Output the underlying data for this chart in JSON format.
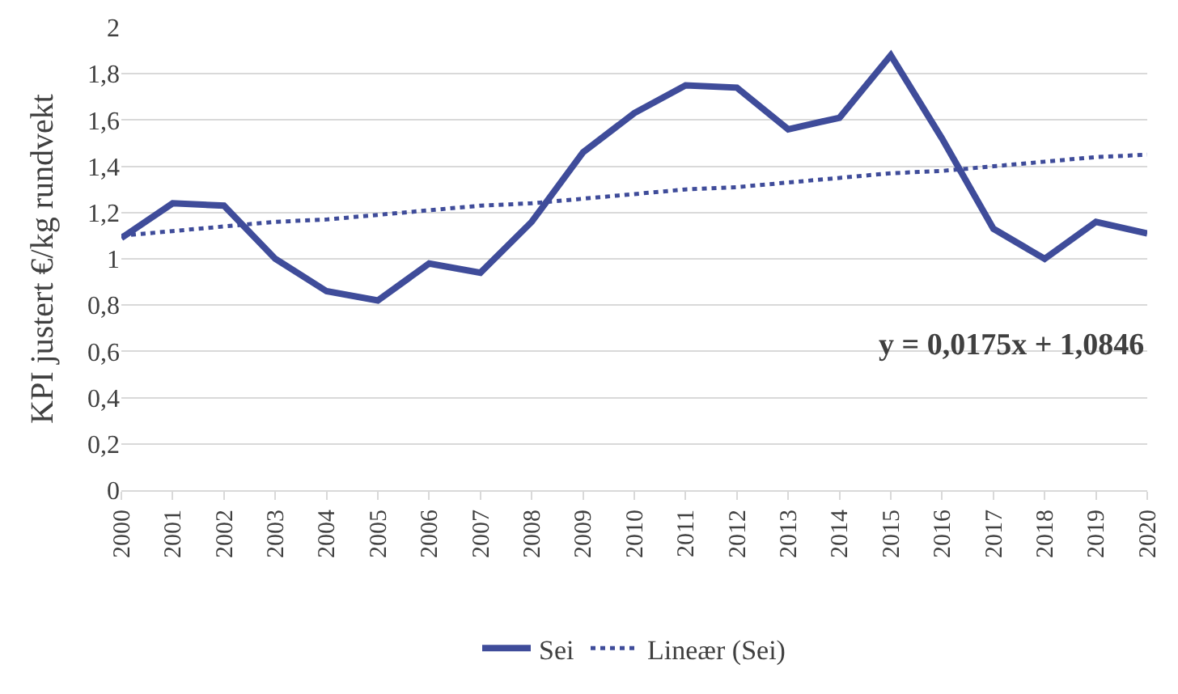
{
  "chart_data": {
    "type": "line",
    "ylabel": "KPI justert €/kg rundvekt",
    "categories": [
      "2000",
      "2001",
      "2002",
      "2003",
      "2004",
      "2005",
      "2006",
      "2007",
      "2008",
      "2009",
      "2010",
      "2011",
      "2012",
      "2013",
      "2014",
      "2015",
      "2016",
      "2017",
      "2018",
      "2019",
      "2020"
    ],
    "series": [
      {
        "name": "Sei",
        "color": "#3f4c9a",
        "values": [
          1.09,
          1.24,
          1.23,
          1.0,
          0.86,
          0.82,
          0.98,
          0.94,
          1.16,
          1.46,
          1.63,
          1.75,
          1.74,
          1.56,
          1.61,
          1.88,
          1.52,
          1.13,
          1.0,
          1.16,
          1.11
        ],
        "line_style": "solid"
      },
      {
        "name": "Lineær (Sei)",
        "color": "#3f4c9a",
        "type": "line",
        "values": [
          1.1,
          1.12,
          1.14,
          1.16,
          1.17,
          1.19,
          1.21,
          1.23,
          1.24,
          1.26,
          1.28,
          1.3,
          1.31,
          1.33,
          1.35,
          1.37,
          1.38,
          1.4,
          1.42,
          1.44,
          1.45
        ],
        "line_style": "dotted"
      }
    ],
    "ylim": [
      0,
      2
    ],
    "yticks": [
      0,
      {
        "value": 0.2,
        "label": "0,2"
      },
      {
        "value": 0.4,
        "label": "0,4"
      },
      {
        "value": 0.6,
        "label": "0,6"
      },
      {
        "value": 0.8,
        "label": "0,8"
      },
      1,
      {
        "value": 1.2,
        "label": "1,2"
      },
      {
        "value": 1.4,
        "label": "1,4"
      },
      {
        "value": 1.6,
        "label": "1,6"
      },
      {
        "value": 1.8,
        "label": "1,8"
      },
      2
    ],
    "annotations": [
      "y = 0,0175x + 1,0846"
    ],
    "grid": "y",
    "legend": "bottom",
    "marker": "none"
  }
}
